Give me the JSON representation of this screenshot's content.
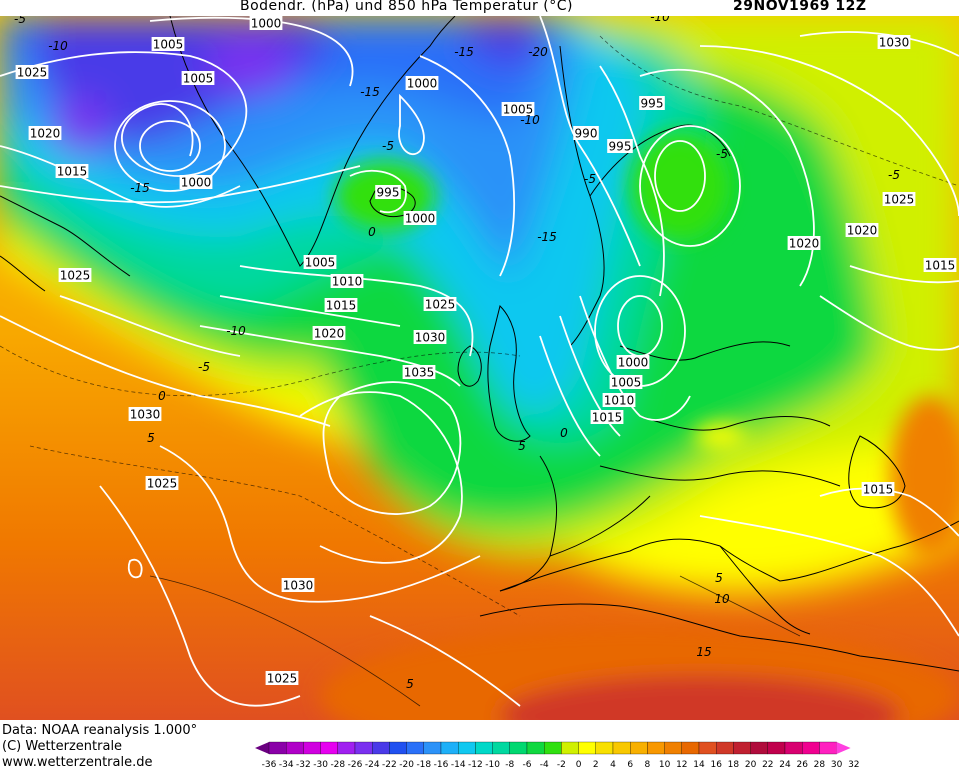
{
  "title": {
    "main": "Bodendr. (hPa) und 850 hPa Temperatur (°C)",
    "date": "29NOV1969 12Z"
  },
  "footer": {
    "line1": "Data: NOAA reanalysis 1.000°",
    "line2": "(C) Wetterzentrale",
    "line3": "www.wetterzentrale.de"
  },
  "legend": {
    "ticks": [
      "-36",
      "-34",
      "-32",
      "-30",
      "-28",
      "-26",
      "-24",
      "-22",
      "-20",
      "-18",
      "-16",
      "-14",
      "-12",
      "-10",
      "-8",
      "-6",
      "-4",
      "-2",
      "0",
      "2",
      "4",
      "6",
      "8",
      "10",
      "12",
      "14",
      "16",
      "18",
      "20",
      "22",
      "24",
      "26",
      "28",
      "30",
      "32"
    ],
    "colors": [
      "#6a0080",
      "#8a00a8",
      "#b000c8",
      "#d000e0",
      "#e600f0",
      "#a020f0",
      "#7a30f0",
      "#4a3ae8",
      "#2050f0",
      "#2a70f8",
      "#2c92f8",
      "#1eb0f8",
      "#10c8f0",
      "#00d8c8",
      "#00d8a0",
      "#00d870",
      "#10d840",
      "#30e010",
      "#d0f000",
      "#ffff00",
      "#f8e000",
      "#f8c800",
      "#f8b000",
      "#f89800",
      "#f08000",
      "#e86800",
      "#e05020",
      "#d03828",
      "#c02030",
      "#b00c3c",
      "#c0004c",
      "#d80070",
      "#f00090",
      "#ff20c0",
      "#ff40e0"
    ]
  },
  "isobars": [
    {
      "label": "1000"
    },
    {
      "label": "1005"
    },
    {
      "label": "1025"
    },
    {
      "label": "1005"
    },
    {
      "label": "1020"
    },
    {
      "label": "1015"
    },
    {
      "label": "1000"
    },
    {
      "label": "1000"
    },
    {
      "label": "1005"
    },
    {
      "label": "995"
    },
    {
      "label": "990"
    },
    {
      "label": "995"
    },
    {
      "label": "1030"
    },
    {
      "label": "995"
    },
    {
      "label": "1000"
    },
    {
      "label": "1005"
    },
    {
      "label": "1010"
    },
    {
      "label": "1015"
    },
    {
      "label": "1020"
    },
    {
      "label": "1025"
    },
    {
      "label": "1030"
    },
    {
      "label": "1035"
    },
    {
      "label": "1025"
    },
    {
      "label": "1030"
    },
    {
      "label": "1025"
    },
    {
      "label": "1030"
    },
    {
      "label": "1025"
    },
    {
      "label": "1020"
    },
    {
      "label": "1025"
    },
    {
      "label": "1020"
    },
    {
      "label": "1015"
    },
    {
      "label": "1000"
    },
    {
      "label": "1005"
    },
    {
      "label": "1010"
    },
    {
      "label": "1015"
    },
    {
      "label": "1015"
    }
  ],
  "temps": [
    {
      "label": "-5"
    },
    {
      "label": "-10"
    },
    {
      "label": "-15"
    },
    {
      "label": "-20"
    },
    {
      "label": "-15"
    },
    {
      "label": "-10"
    },
    {
      "label": "-15"
    },
    {
      "label": "-5"
    },
    {
      "label": "0"
    },
    {
      "label": "-10"
    },
    {
      "label": "-5"
    },
    {
      "label": "-10"
    },
    {
      "label": "-5"
    },
    {
      "label": "-15"
    },
    {
      "label": "-5"
    },
    {
      "label": "0"
    },
    {
      "label": "-5"
    },
    {
      "label": "5"
    },
    {
      "label": "5"
    },
    {
      "label": "10"
    },
    {
      "label": "15"
    },
    {
      "label": "5"
    },
    {
      "label": "5"
    },
    {
      "label": "0"
    }
  ]
}
